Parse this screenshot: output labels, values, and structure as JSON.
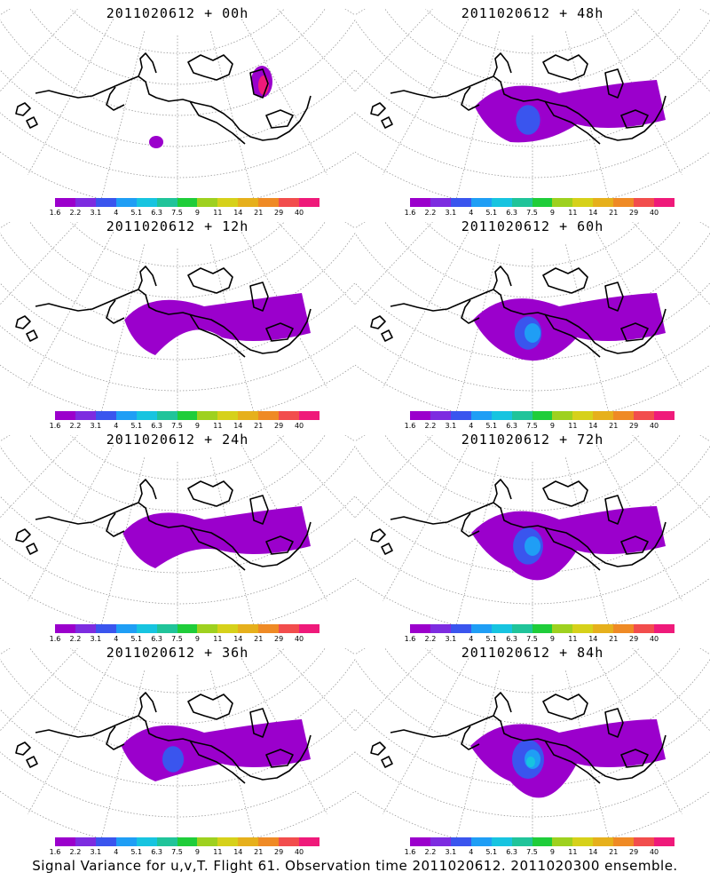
{
  "panels": [
    {
      "title": "2011020612 + 00h",
      "level": 0
    },
    {
      "title": "2011020612 + 48h",
      "level": 4
    },
    {
      "title": "2011020612 + 12h",
      "level": 1
    },
    {
      "title": "2011020612 + 60h",
      "level": 5
    },
    {
      "title": "2011020612 + 24h",
      "level": 2
    },
    {
      "title": "2011020612 + 72h",
      "level": 6
    },
    {
      "title": "2011020612 + 36h",
      "level": 3
    },
    {
      "title": "2011020612 + 84h",
      "level": 7
    }
  ],
  "colorbar": {
    "labels": [
      "1.6",
      "2.2",
      "3.1",
      "4",
      "5.1",
      "6.3",
      "7.5",
      "9",
      "11",
      "14",
      "21",
      "29",
      "40"
    ],
    "colors": [
      "#9b00cc",
      "#7d2ce0",
      "#3a55ee",
      "#1f9ef5",
      "#17c4e0",
      "#20c49a",
      "#1fcd3a",
      "#9ed11f",
      "#d6d11a",
      "#e6b01c",
      "#ef8a25",
      "#f24d4d",
      "#ef1a7a"
    ]
  },
  "footer": "Signal Variance for u,v,T. Flight 61. Observation time 2011020612. 2011020300 ensemble.",
  "colors": {
    "coast": "#000000",
    "grid": "#9a9a9a"
  }
}
